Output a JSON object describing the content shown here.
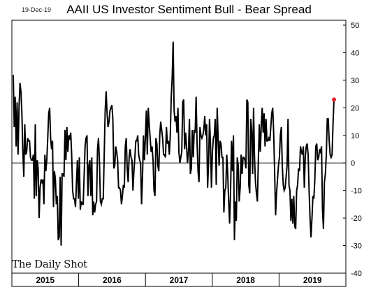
{
  "header": {
    "date": "19-Dec-19",
    "title": "AAII US Investor Sentiment Bull - Bear Spread",
    "brand": "The Daily Shot"
  },
  "chart_data": {
    "type": "line",
    "title": "AAII US Investor Sentiment Bull - Bear Spread",
    "xlabel": "",
    "ylabel": "",
    "ylim": [
      -40,
      50
    ],
    "yticks": [
      50,
      40,
      30,
      20,
      10,
      0,
      -10,
      -20,
      -30,
      -40
    ],
    "x_period_labels": [
      "2015",
      "2016",
      "2017",
      "2018",
      "2019"
    ],
    "grid": false,
    "zero_line": true,
    "line_color": "#000000",
    "marker_color": "#e8202a",
    "series": [
      {
        "values": [
          32,
          13,
          24,
          6,
          22,
          3,
          20,
          29,
          26,
          18,
          4,
          -5,
          14,
          3,
          4,
          9,
          8,
          8,
          2,
          1,
          1,
          3,
          -13,
          14,
          -12,
          1,
          -2,
          -20,
          -9,
          -6,
          -7,
          -6,
          -15,
          3,
          -3,
          1,
          9,
          18,
          20,
          9,
          5,
          8,
          -16,
          -3,
          -6,
          -15,
          -12,
          -28,
          -27,
          -5,
          -30,
          -4,
          -4,
          -5,
          12,
          1,
          13,
          4,
          10,
          9,
          11,
          3,
          -10,
          -13,
          -13,
          -16,
          -7,
          1,
          -13,
          2,
          -17,
          -14,
          -15,
          -15,
          -5,
          6,
          9,
          10,
          -12,
          -1,
          1,
          -12,
          2,
          -19,
          -14,
          -18,
          -15,
          -14,
          5,
          9,
          1,
          -14,
          -15,
          -13,
          -13,
          3,
          19,
          26,
          18,
          13,
          15,
          19,
          20,
          21,
          16,
          -2,
          -1,
          6,
          4,
          1,
          -9,
          -9,
          -10,
          -15,
          -12,
          -8,
          -9,
          6,
          9,
          -2,
          -7,
          2,
          5,
          2,
          1,
          -10,
          -3,
          2,
          8,
          8,
          10,
          3,
          1,
          0,
          -15,
          -5,
          10,
          1,
          9,
          19,
          3,
          20,
          14,
          9,
          4,
          6,
          1,
          -10,
          -12,
          9,
          7,
          -1,
          -3,
          10,
          15,
          12,
          9,
          3,
          3,
          2,
          13,
          7,
          8,
          3,
          10,
          24,
          31,
          44,
          19,
          15,
          17,
          11,
          20,
          4,
          0,
          2,
          4,
          22,
          23,
          5,
          11,
          6,
          0,
          4,
          16,
          -4,
          -2,
          12,
          2,
          12,
          11,
          24,
          7,
          -3,
          -7,
          13,
          10,
          9,
          10,
          12,
          17,
          10,
          14,
          -9,
          0,
          16,
          7,
          -9,
          4,
          9,
          10,
          16,
          -8,
          20,
          9,
          -1,
          8,
          7,
          2,
          2,
          -18,
          -10,
          -9,
          3,
          -4,
          -14,
          -22,
          -10,
          8,
          -3,
          10,
          -28,
          -14,
          -21,
          2,
          -1,
          -14,
          -9,
          3,
          -4,
          2,
          2,
          1,
          -2,
          23,
          22,
          -8,
          -11,
          16,
          12,
          -4,
          20,
          2,
          -7,
          -11,
          -14,
          1,
          14,
          4,
          13,
          20,
          11,
          18,
          6,
          16,
          8,
          8,
          9,
          8,
          13,
          18,
          20,
          11,
          -3,
          -19,
          -11,
          -6,
          -1,
          2,
          10,
          13,
          -1,
          -8,
          -10,
          -9,
          -5,
          -1,
          16,
          -8,
          -10,
          -21,
          -13,
          -22,
          -12,
          -23,
          -24,
          -10,
          -8,
          -2,
          -3,
          6,
          4,
          3,
          6,
          -9,
          2,
          6,
          7,
          3,
          -10,
          -20,
          -27,
          -20,
          -12,
          -13,
          -6,
          6,
          7,
          1,
          2,
          5,
          4,
          6,
          -17,
          -24,
          -7,
          -4,
          3,
          16,
          16,
          8,
          3,
          2,
          3,
          14,
          23
        ]
      }
    ]
  }
}
